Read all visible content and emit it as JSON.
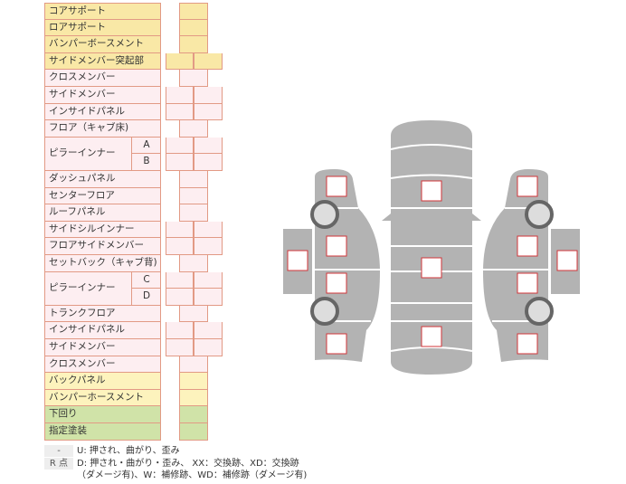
{
  "table": {
    "rows": [
      {
        "label": "コアサポート",
        "color": "y1",
        "cells": "single"
      },
      {
        "label": "ロアサポート",
        "color": "y1",
        "cells": "single"
      },
      {
        "label": "バンパーボースメント",
        "color": "y1",
        "cells": "single"
      },
      {
        "label": "サイドメンバー突起部",
        "color": "y1",
        "cells": "double"
      },
      {
        "label": "クロスメンバー",
        "color": "p",
        "cells": "single"
      },
      {
        "label": "サイドメンバー",
        "color": "p",
        "cells": "double"
      },
      {
        "label": "インサイドパネル",
        "color": "p",
        "cells": "double"
      },
      {
        "label": "フロア（キャブ床)",
        "color": "p",
        "cells": "single"
      },
      {
        "label": "ピラーインナー",
        "sub": "A",
        "color": "p",
        "cells": "double",
        "span": 2
      },
      {
        "label": "",
        "sub": "B",
        "color": "p",
        "cells": "double"
      },
      {
        "label": "ダッシュパネル",
        "color": "p",
        "cells": "single"
      },
      {
        "label": "センターフロア",
        "color": "p",
        "cells": "single"
      },
      {
        "label": "ルーフパネル",
        "color": "p",
        "cells": "single"
      },
      {
        "label": "サイドシルインナー",
        "color": "p",
        "cells": "double"
      },
      {
        "label": "フロアサイドメンバー",
        "color": "p",
        "cells": "double"
      },
      {
        "label": "セットバック（キャブ背)",
        "color": "p",
        "cells": "single"
      },
      {
        "label": "ピラーインナー",
        "sub": "C",
        "color": "p",
        "cells": "double",
        "span": 2
      },
      {
        "label": "",
        "sub": "D",
        "color": "p",
        "cells": "double"
      },
      {
        "label": "トランクフロア",
        "color": "p",
        "cells": "single"
      },
      {
        "label": "インサイドパネル",
        "color": "p",
        "cells": "double"
      },
      {
        "label": "サイドメンバー",
        "color": "p",
        "cells": "double"
      },
      {
        "label": "クロスメンバー",
        "color": "p",
        "cells": "single"
      },
      {
        "label": "バックパネル",
        "color": "y2",
        "cells": "single"
      },
      {
        "label": "バンパーホースメント",
        "color": "y2",
        "cells": "single"
      },
      {
        "label": "下回り",
        "color": "g",
        "cells": "single"
      },
      {
        "label": "指定塗装",
        "color": "g",
        "cells": "single"
      }
    ]
  },
  "legend": {
    "key1": "-",
    "text1": "U: 押され、曲がり、歪み",
    "key2": "R 点",
    "text2": "D: 押され・曲がり・歪み、 XX：交換跡、XD：交換跡",
    "text3": "（ダメージ有)、W：補修跡、WD：補修跡（ダメージ有)"
  },
  "colors": {
    "border": "#e29a85",
    "body": "#b3b3b3",
    "marker": "#d0343a"
  }
}
